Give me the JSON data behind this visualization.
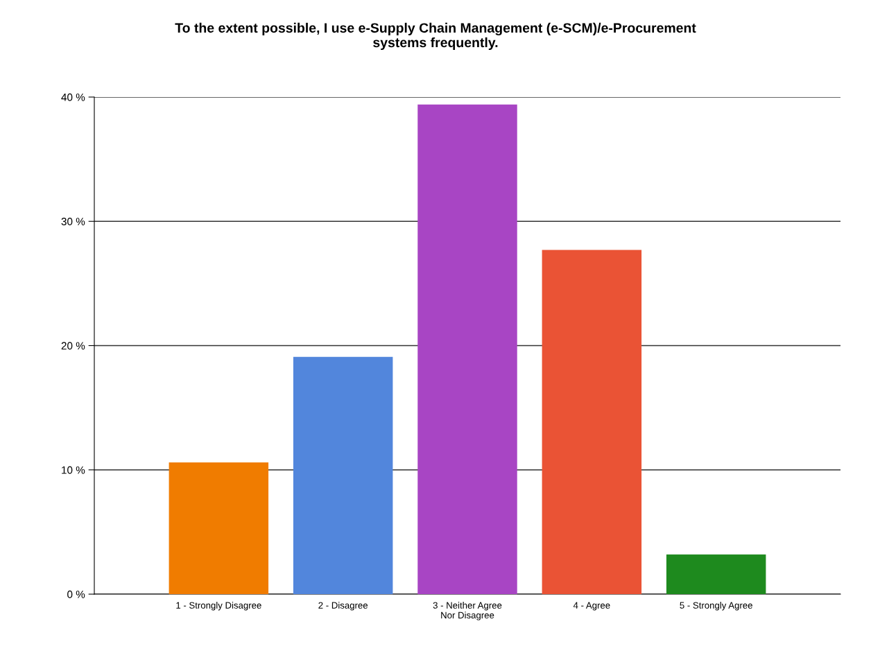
{
  "chart_data": {
    "type": "bar",
    "title": "To the extent possible, I use e-Supply Chain Management (e-SCM)/e-Procurement\nsystems frequently.",
    "categories": [
      "1 - Strongly Disagree",
      "2 - Disagree",
      "3 - Neither Agree\nNor Disagree",
      "4 - Agree",
      "5 - Strongly Agree"
    ],
    "values": [
      10.6,
      19.1,
      39.4,
      27.7,
      3.2
    ],
    "colors": [
      "#f07c00",
      "#5286dc",
      "#a845c4",
      "#ea5335",
      "#1e8a1e"
    ],
    "ylim": [
      0,
      40
    ],
    "yticks": [
      {
        "value": 0,
        "label": "0 %"
      },
      {
        "value": 10,
        "label": "10 %"
      },
      {
        "value": 20,
        "label": "20 %"
      },
      {
        "value": 30,
        "label": "30 %"
      },
      {
        "value": 40,
        "label": "40 %"
      }
    ],
    "grid": "y",
    "legend": false
  }
}
